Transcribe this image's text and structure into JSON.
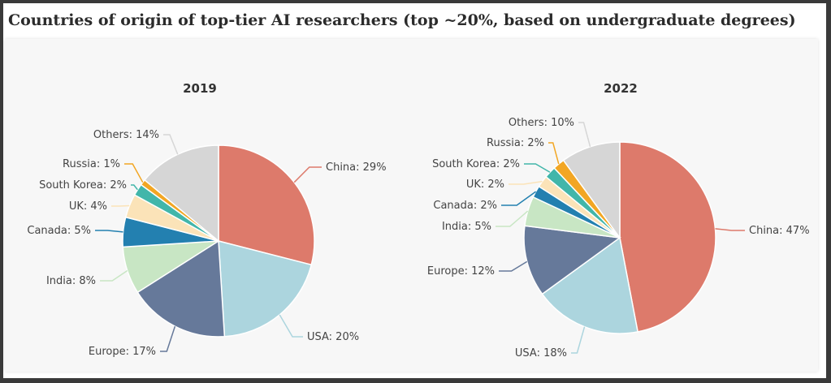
{
  "page": {
    "title": "Countries of origin of top-tier AI researchers (top ~20%, based on undergraduate degrees)"
  },
  "colors": {
    "China": "#dd7a6b",
    "USA": "#acd5de",
    "Europe": "#66799a",
    "India": "#c8e6c4",
    "Canada": "#2380b0",
    "UK": "#fbe3b8",
    "South Korea": "#42b6aa",
    "Russia": "#f2a623",
    "Others": "#d6d6d6"
  },
  "chart_data": [
    {
      "type": "pie",
      "title": "2019",
      "slices": [
        {
          "name": "China",
          "value": 29,
          "label": "China: 29%"
        },
        {
          "name": "USA",
          "value": 20,
          "label": "USA: 20%"
        },
        {
          "name": "Europe",
          "value": 17,
          "label": "Europe: 17%"
        },
        {
          "name": "India",
          "value": 8,
          "label": "India: 8%"
        },
        {
          "name": "Canada",
          "value": 5,
          "label": "Canada: 5%"
        },
        {
          "name": "UK",
          "value": 4,
          "label": "UK: 4%"
        },
        {
          "name": "South Korea",
          "value": 2,
          "label": "South Korea: 2%"
        },
        {
          "name": "Russia",
          "value": 1,
          "label": "Russia: 1%"
        },
        {
          "name": "Others",
          "value": 14,
          "label": "Others: 14%"
        }
      ]
    },
    {
      "type": "pie",
      "title": "2022",
      "slices": [
        {
          "name": "China",
          "value": 47,
          "label": "China: 47%"
        },
        {
          "name": "USA",
          "value": 18,
          "label": "USA: 18%"
        },
        {
          "name": "Europe",
          "value": 12,
          "label": "Europe: 12%"
        },
        {
          "name": "India",
          "value": 5,
          "label": "India: 5%"
        },
        {
          "name": "Canada",
          "value": 2,
          "label": "Canada: 2%"
        },
        {
          "name": "UK",
          "value": 2,
          "label": "UK: 2%"
        },
        {
          "name": "South Korea",
          "value": 2,
          "label": "South Korea: 2%"
        },
        {
          "name": "Russia",
          "value": 2,
          "label": "Russia: 2%"
        },
        {
          "name": "Others",
          "value": 10,
          "label": "Others: 10%"
        }
      ]
    }
  ]
}
